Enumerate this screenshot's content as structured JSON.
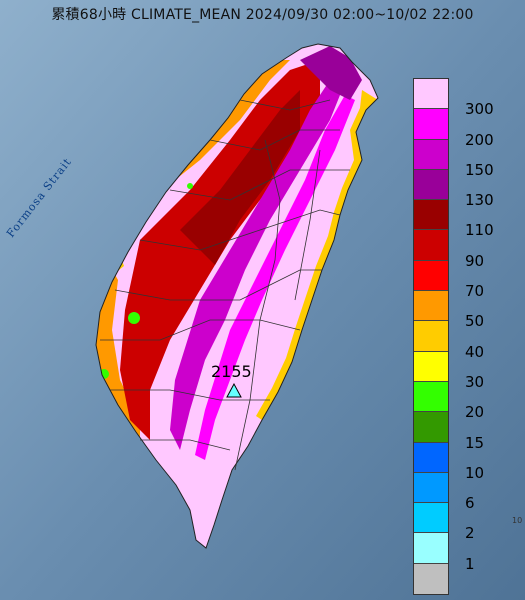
{
  "title": "累積68小時 CLIMATE_MEAN 2024/09/30 02:00~10/02 22:00",
  "strait_label": "Formosa Strait",
  "max_value_label": "2155",
  "corner_label": "10",
  "legend": {
    "labels": [
      "300",
      "200",
      "150",
      "130",
      "110",
      "90",
      "70",
      "50",
      "40",
      "30",
      "20",
      "15",
      "10",
      "6",
      "2",
      "1"
    ],
    "colors": [
      "#ffc8ff",
      "#ff00ff",
      "#cc00cc",
      "#990099",
      "#990000",
      "#cc0000",
      "#ff0000",
      "#ff9900",
      "#ffcc00",
      "#ffff00",
      "#33ff00",
      "#339900",
      "#0066ff",
      "#0099ff",
      "#00ccff",
      "#99ffff",
      "#bfbfbf"
    ]
  },
  "colors": {
    "ocean": "#5c7fa0",
    "land_pink": "#ffc8ff",
    "magenta": "#ff00ff",
    "deep_red": "#cc0000",
    "marker": "#66ffff"
  },
  "marker_icon": "triangle-station-icon"
}
